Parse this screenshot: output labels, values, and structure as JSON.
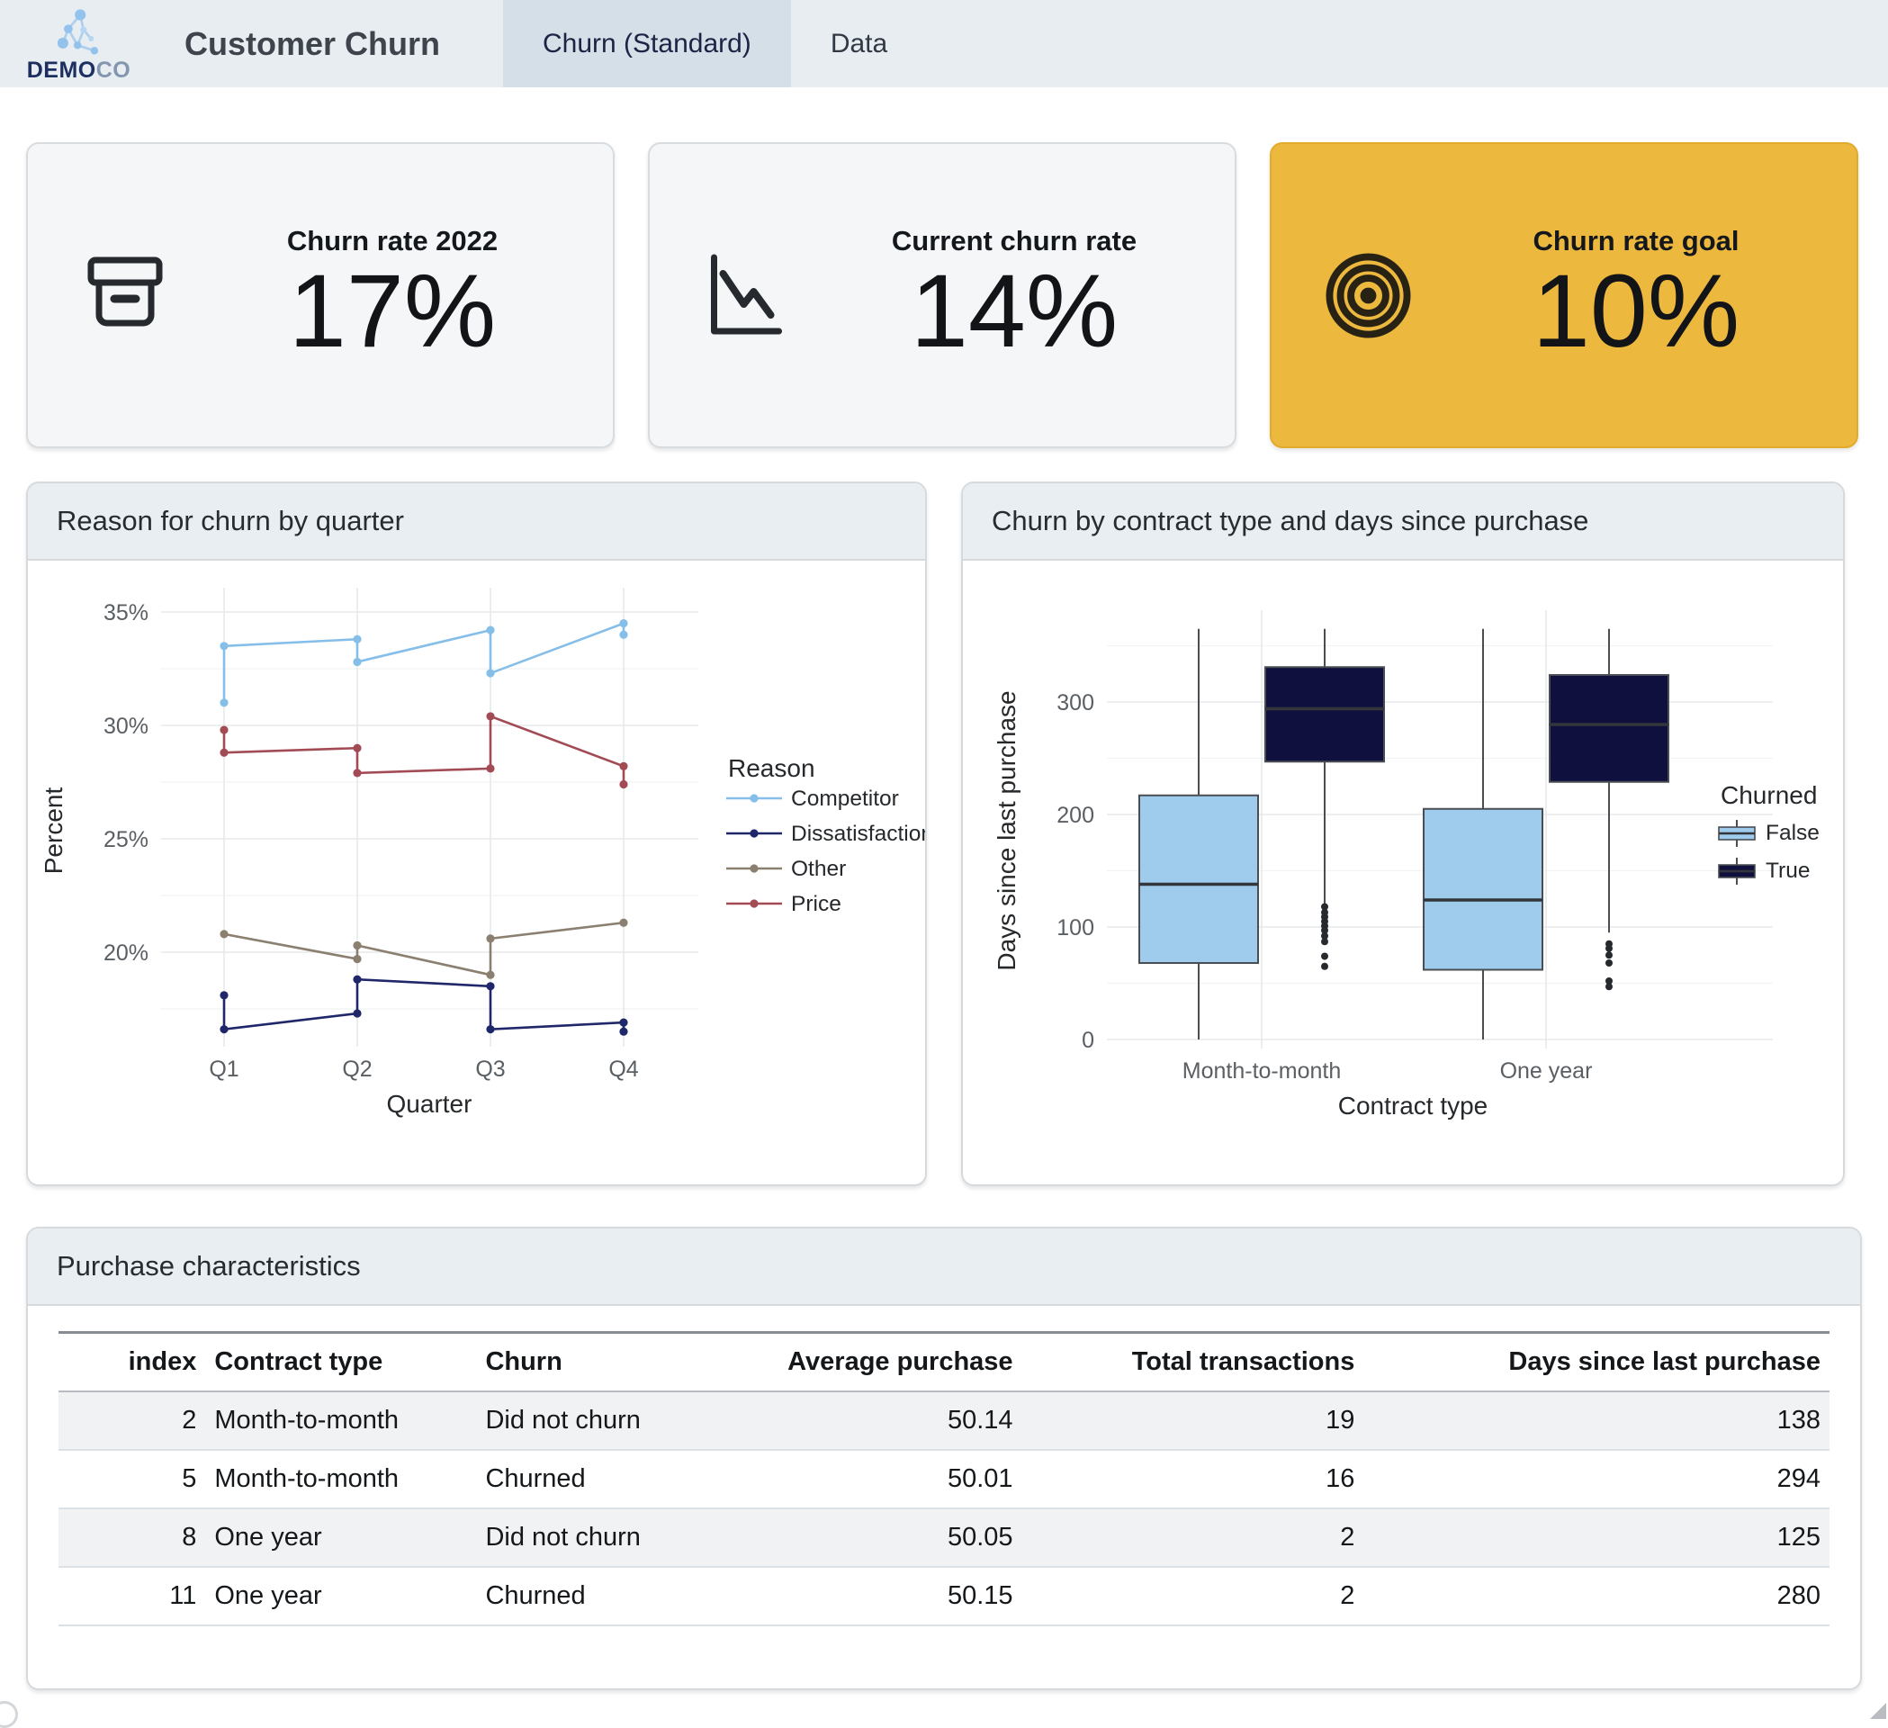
{
  "header": {
    "logo_bold": "DEMO",
    "logo_light": "CO",
    "app_title": "Customer Churn",
    "tabs": [
      {
        "label": "Churn (Standard)",
        "active": true
      },
      {
        "label": "Data",
        "active": false
      }
    ]
  },
  "kpi_cards": [
    {
      "title": "Churn rate 2022",
      "value": "17%",
      "icon": "archive-box-icon",
      "variant": "default"
    },
    {
      "title": "Current churn rate",
      "value": "14%",
      "icon": "trend-down-icon",
      "variant": "default"
    },
    {
      "title": "Churn rate goal",
      "value": "10%",
      "icon": "target-icon",
      "variant": "highlight",
      "highlight_color": "#edb83e"
    }
  ],
  "panels": {
    "line_panel_title": "Reason for churn by quarter",
    "box_panel_title": "Churn by contract type and days since purchase",
    "table_panel_title": "Purchase characteristics"
  },
  "chart_data": [
    {
      "type": "line",
      "title": "Reason for churn by quarter",
      "xlabel": "Quarter",
      "ylabel": "Percent",
      "x_categories": [
        "Q1",
        "Q2",
        "Q3",
        "Q4"
      ],
      "y_major_ticks": [
        {
          "v": 20,
          "label": "20%"
        },
        {
          "v": 25,
          "label": "25%"
        },
        {
          "v": 30,
          "label": "30%"
        },
        {
          "v": 35,
          "label": "35%"
        }
      ],
      "y_minor_ticks": [
        17.5,
        22.5,
        27.5,
        32.5
      ],
      "ylim": [
        15.8,
        35.8
      ],
      "grid": true,
      "legend_title": "Reason",
      "legend_position": "right",
      "series": [
        {
          "name": "Competitor",
          "color": "#85bfe9",
          "points": [
            [
              "Q1",
              31.0
            ],
            [
              "Q1",
              33.5
            ],
            [
              "Q2",
              33.8
            ],
            [
              "Q2",
              32.8
            ],
            [
              "Q3",
              34.2
            ],
            [
              "Q3",
              32.3
            ],
            [
              "Q4",
              34.5
            ],
            [
              "Q4",
              34.0
            ]
          ]
        },
        {
          "name": "Dissatisfaction",
          "color": "#20266a",
          "points": [
            [
              "Q1",
              18.1
            ],
            [
              "Q1",
              16.6
            ],
            [
              "Q2",
              17.3
            ],
            [
              "Q2",
              18.8
            ],
            [
              "Q3",
              18.5
            ],
            [
              "Q3",
              16.6
            ],
            [
              "Q4",
              16.9
            ],
            [
              "Q4",
              16.5
            ]
          ]
        },
        {
          "name": "Other",
          "color": "#8b7f6f",
          "points": [
            [
              "Q1",
              20.8
            ],
            [
              "Q2",
              19.7
            ],
            [
              "Q2",
              20.3
            ],
            [
              "Q3",
              19.0
            ],
            [
              "Q3",
              20.6
            ],
            [
              "Q4",
              21.3
            ]
          ]
        },
        {
          "name": "Price",
          "color": "#a34b55",
          "points": [
            [
              "Q1",
              29.8
            ],
            [
              "Q1",
              28.8
            ],
            [
              "Q2",
              29.0
            ],
            [
              "Q2",
              27.9
            ],
            [
              "Q3",
              28.1
            ],
            [
              "Q3",
              30.4
            ],
            [
              "Q4",
              28.2
            ],
            [
              "Q4",
              27.4
            ]
          ]
        }
      ]
    },
    {
      "type": "boxplot",
      "title": "Churn by contract type and days since purchase",
      "xlabel": "Contract type",
      "ylabel": "Days since last purchase",
      "categories": [
        "Month-to-month",
        "One year"
      ],
      "y_major_ticks": [
        {
          "v": 0,
          "label": "0"
        },
        {
          "v": 100,
          "label": "100"
        },
        {
          "v": 200,
          "label": "200"
        },
        {
          "v": 300,
          "label": "300"
        }
      ],
      "y_minor_ticks": [
        50,
        150,
        250,
        350
      ],
      "ylim": [
        -20,
        395
      ],
      "grid": true,
      "legend_title": "Churned",
      "legend_position": "right",
      "groups": [
        {
          "name": "False",
          "color": "#9fcbec",
          "boxes": [
            {
              "category": "Month-to-month",
              "whisker_low": 0,
              "q1": 68,
              "median": 138,
              "q3": 217,
              "whisker_high": 365,
              "outliers": []
            },
            {
              "category": "One year",
              "whisker_low": 0,
              "q1": 62,
              "median": 124,
              "q3": 205,
              "whisker_high": 365,
              "outliers": []
            }
          ]
        },
        {
          "name": "True",
          "color": "#0f103e",
          "boxes": [
            {
              "category": "Month-to-month",
              "whisker_low": 120,
              "q1": 247,
              "median": 294,
              "q3": 331,
              "whisker_high": 365,
              "outliers": [
                118,
                113,
                109,
                105,
                101,
                97,
                92,
                87,
                74,
                65
              ]
            },
            {
              "category": "One year",
              "whisker_low": 95,
              "q1": 229,
              "median": 280,
              "q3": 324,
              "whisker_high": 365,
              "outliers": [
                85,
                81,
                75,
                68,
                52,
                47
              ]
            }
          ]
        }
      ]
    }
  ],
  "table": {
    "columns": [
      {
        "label": "index",
        "align": "right"
      },
      {
        "label": "Contract type",
        "align": "left"
      },
      {
        "label": "Churn",
        "align": "left"
      },
      {
        "label": "Average purchase",
        "align": "right"
      },
      {
        "label": "Total transactions",
        "align": "right"
      },
      {
        "label": "Days since last purchase",
        "align": "right"
      }
    ],
    "rows": [
      [
        "2",
        "Month-to-month",
        "Did not churn",
        "50.14",
        "19",
        "138"
      ],
      [
        "5",
        "Month-to-month",
        "Churned",
        "50.01",
        "16",
        "294"
      ],
      [
        "8",
        "One year",
        "Did not churn",
        "50.05",
        "2",
        "125"
      ],
      [
        "11",
        "One year",
        "Churned",
        "50.15",
        "2",
        "280"
      ]
    ]
  },
  "colors": {
    "header_bg": "#e8edf2",
    "active_tab_bg": "#d5dfe7",
    "card_bg": "#f4f6f8",
    "highlight_card_bg": "#edb83e",
    "panel_header_bg": "#e9eef2",
    "grid_major": "#e6e9eb",
    "grid_minor": "#f1f3f4",
    "axis_text": "#5a5f64",
    "box_stroke": "#4a4e53"
  }
}
